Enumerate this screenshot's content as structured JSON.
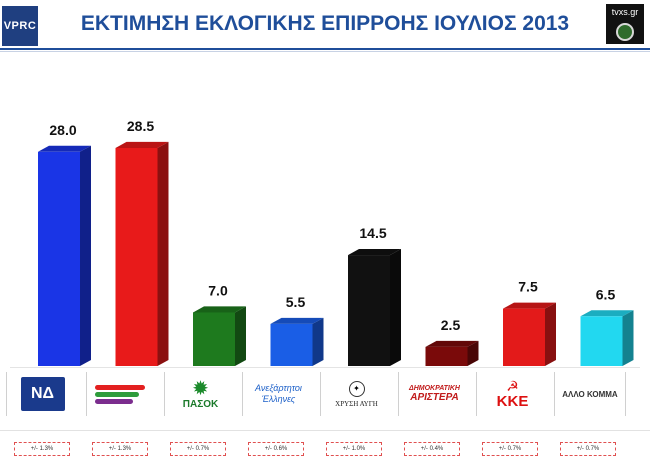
{
  "header": {
    "title": "ΕΚΤΙΜΗΣΗ ΕΚΛΟΓΙΚΗΣ ΕΠΙΡΡΟΗΣ ΙΟΥΛΙΟΣ 2013",
    "logo_left": "VPRC",
    "logo_right": "tvxs.gr"
  },
  "chart_data": {
    "type": "bar",
    "title": "ΕΚΤΙΜΗΣΗ ΕΚΛΟΓΙΚΗΣ ΕΠΙΡΡΟΗΣ ΙΟΥΛΙΟΣ 2013",
    "categories": [
      "ΝΔ",
      "ΣΥΡΙΖΑ",
      "ΠΑΣΟΚ",
      "ΑΝΕΛ",
      "ΧΡΥΣΗ ΑΥΓΗ",
      "ΔΗΜΟΚΡΑΤΙΚΗ ΑΡΙΣΤΕΡΑ",
      "ΚΚΕ",
      "ΑΛΛΟ ΚΟΜΜΑ"
    ],
    "values": [
      28.0,
      28.5,
      7.0,
      5.5,
      14.5,
      2.5,
      7.5,
      6.5
    ],
    "value_labels": [
      "28.0",
      "28.5",
      "7.0",
      "5.5",
      "14.5",
      "2.5",
      "7.5",
      "6.5"
    ],
    "colors": [
      "#1a35e6",
      "#e81a1a",
      "#1e7a1e",
      "#1a5ee6",
      "#111111",
      "#7a0a0a",
      "#e31a1a",
      "#22d8f0"
    ],
    "ylim": [
      0,
      30
    ],
    "grid": false,
    "margins_of_error": [
      "+/- 1.3%",
      "+/- 1.3%",
      "+/- 0.7%",
      "+/- 0.6%",
      "+/- 1.0%",
      "+/- 0.4%",
      "+/- 0.7%",
      "+/- 0.7%"
    ]
  },
  "legend": {
    "nd": "ΝΔ",
    "pasok": "ΠΑΣΟΚ",
    "anel": "Ανεξάρτητοι Έλληνες",
    "xa": "ΧΡΥΣΗ ΑΥΓΗ",
    "dimar_l1": "ΔΗΜΟΚΡΑΤΙΚΗ",
    "dimar_l2": "ΑΡΙΣΤΕΡΑ",
    "kke": "ΚΚΕ",
    "other": "ΑΛΛΟ ΚΟΜΜΑ"
  }
}
